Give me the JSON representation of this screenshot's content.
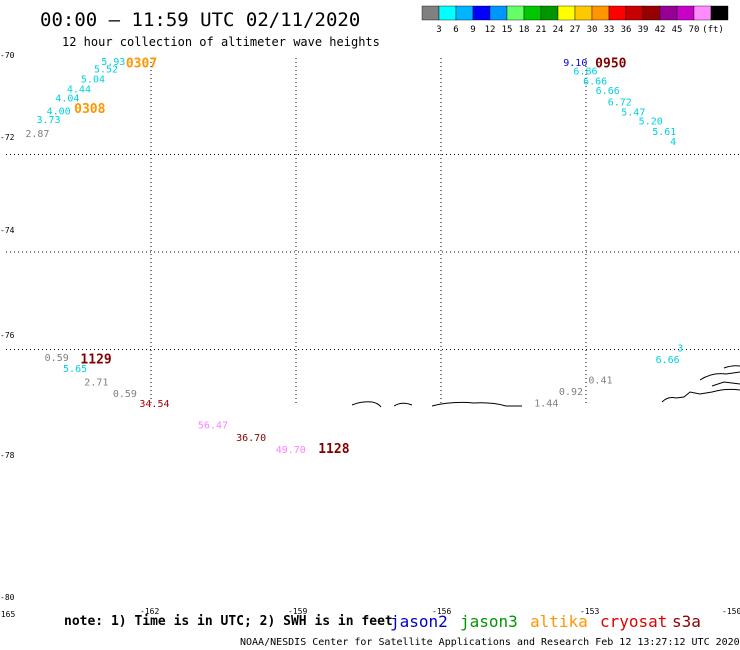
{
  "title": "00:00 – 11:59 UTC 02/11/2020",
  "subtitle": "12 hour collection of altimeter wave heights",
  "legend": {
    "unit": "(ft)",
    "colors": [
      "#808080",
      "#00ffff",
      "#00b4ff",
      "#0000ff",
      "#0096ff",
      "#64ff64",
      "#00c800",
      "#009600",
      "#ffff00",
      "#ffc800",
      "#ff9600",
      "#ff0000",
      "#c80000",
      "#960000",
      "#960096",
      "#c800c8",
      "#ff8cff",
      "#000000"
    ],
    "ticks": [
      "3",
      "6",
      "9",
      "12",
      "15",
      "18",
      "21",
      "24",
      "27",
      "30",
      "33",
      "36",
      "39",
      "42",
      "45",
      "70"
    ]
  },
  "axes": {
    "lat_labels": [
      "-70",
      "-72",
      "-74",
      "-76",
      "-78",
      "-80"
    ],
    "lon_labels": [
      "-165",
      "-162",
      "-159",
      "-156",
      "-153",
      "-150"
    ]
  },
  "note": "note: 1) Time is in UTC; 2) SWH is in feet",
  "satellites": [
    {
      "name": "jason2",
      "color": "#0000cc"
    },
    {
      "name": "jason3",
      "color": "#009600"
    },
    {
      "name": "altika",
      "color": "#ff9600"
    },
    {
      "name": "cryosat",
      "color": "#e00000"
    },
    {
      "name": "s3a",
      "color": "#880000"
    }
  ],
  "footer": "NOAA/NESDIS Center for Satellite Applications and Research     Feb 12 13:27:12 UTC 2020",
  "observations": [
    {
      "text": "5.93",
      "lon": -163.03,
      "lat": -70.16,
      "color": "#00d0e0"
    },
    {
      "text": "5.52",
      "lon": -163.18,
      "lat": -70.32,
      "color": "#00d0e0"
    },
    {
      "text": "5.04",
      "lon": -163.45,
      "lat": -70.52,
      "color": "#00d0e0"
    },
    {
      "text": "4.44",
      "lon": -163.74,
      "lat": -70.73,
      "color": "#00d0e0"
    },
    {
      "text": "4.04",
      "lon": -163.98,
      "lat": -70.91,
      "color": "#00d0e0"
    },
    {
      "text": "4.00",
      "lon": -164.16,
      "lat": -71.18,
      "color": "#00d0e0"
    },
    {
      "text": "3.73",
      "lon": -164.37,
      "lat": -71.35,
      "color": "#00d0e0"
    },
    {
      "text": "2.87",
      "lon": -164.6,
      "lat": -71.64,
      "color": "#808080"
    },
    {
      "text": "9.10",
      "lon": -153.47,
      "lat": -70.18,
      "color": "#0000cc"
    },
    {
      "text": "6.86",
      "lon": -153.26,
      "lat": -70.36,
      "color": "#00d0e0"
    },
    {
      "text": "6.66",
      "lon": -153.06,
      "lat": -70.56,
      "color": "#00d0e0"
    },
    {
      "text": "6.66",
      "lon": -152.8,
      "lat": -70.76,
      "color": "#00d0e0"
    },
    {
      "text": "6.72",
      "lon": -152.55,
      "lat": -70.99,
      "color": "#00d0e0"
    },
    {
      "text": "5.47",
      "lon": -152.27,
      "lat": -71.2,
      "color": "#00d0e0"
    },
    {
      "text": "5.20",
      "lon": -151.91,
      "lat": -71.38,
      "color": "#00d0e0"
    },
    {
      "text": "5.61",
      "lon": -151.63,
      "lat": -71.6,
      "color": "#00d0e0"
    },
    {
      "text": "4",
      "lon": -151.26,
      "lat": -71.8,
      "color": "#00d0e0"
    },
    {
      "text": "0.59",
      "lon": -164.2,
      "lat": -76.24,
      "color": "#808080"
    },
    {
      "text": "5.65",
      "lon": -163.82,
      "lat": -76.46,
      "color": "#00d0e0"
    },
    {
      "text": "2.71",
      "lon": -163.38,
      "lat": -76.74,
      "color": "#808080"
    },
    {
      "text": "0.59",
      "lon": -162.79,
      "lat": -76.97,
      "color": "#808080"
    },
    {
      "text": "34.54",
      "lon": -162.24,
      "lat": -77.18,
      "color": "#b00000"
    },
    {
      "text": "56.47",
      "lon": -161.03,
      "lat": -77.62,
      "color": "#ff80ff"
    },
    {
      "text": "36.70",
      "lon": -160.24,
      "lat": -77.88,
      "color": "#800000"
    },
    {
      "text": "49.70",
      "lon": -159.42,
      "lat": -78.12,
      "color": "#ff80ff"
    },
    {
      "text": "6.66",
      "lon": -151.56,
      "lat": -76.28,
      "color": "#00d0e0"
    },
    {
      "text": "3",
      "lon": -151.11,
      "lat": -76.04,
      "color": "#00d0e0"
    },
    {
      "text": "0.41",
      "lon": -152.95,
      "lat": -76.7,
      "color": "#808080"
    },
    {
      "text": "0.92",
      "lon": -153.56,
      "lat": -76.93,
      "color": "#808080"
    },
    {
      "text": "1.44",
      "lon": -154.07,
      "lat": -77.17,
      "color": "#808080"
    }
  ],
  "times": [
    {
      "text": "0307",
      "lon": -162.52,
      "lat": -70.22,
      "color": "#ff9600"
    },
    {
      "text": "0308",
      "lon": -163.59,
      "lat": -71.15,
      "color": "#ff9600"
    },
    {
      "text": "0950",
      "lon": -152.81,
      "lat": -70.22,
      "color": "#800000"
    },
    {
      "text": "1129",
      "lon": -163.46,
      "lat": -76.29,
      "color": "#800000"
    },
    {
      "text": "1128",
      "lon": -158.54,
      "lat": -78.12,
      "color": "#800000"
    }
  ]
}
